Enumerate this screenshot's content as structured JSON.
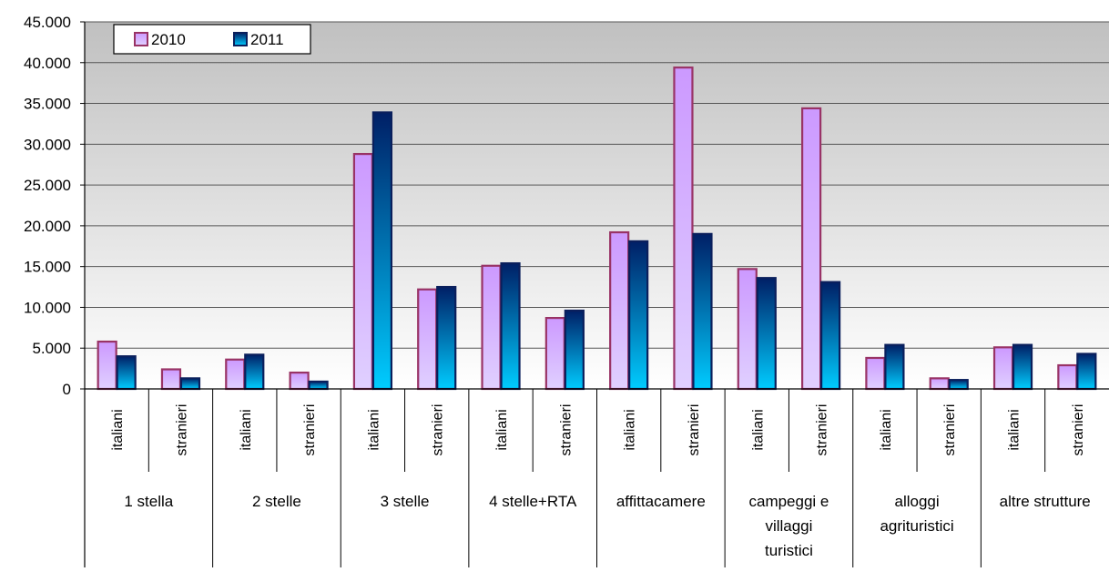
{
  "chart_data": {
    "type": "bar",
    "title": "",
    "xlabel": "",
    "ylabel": "",
    "ylim": [
      0,
      45000
    ],
    "yticks": [
      0,
      5000,
      10000,
      15000,
      20000,
      25000,
      30000,
      35000,
      40000,
      45000
    ],
    "ytick_labels": [
      "0",
      "5.000",
      "10.000",
      "15.000",
      "20.000",
      "25.000",
      "30.000",
      "35.000",
      "40.000",
      "45.000"
    ],
    "grid": true,
    "legend_position": "top-left",
    "groups": [
      {
        "label": "1 stella",
        "lines": [
          "1 stella"
        ]
      },
      {
        "label": "2 stelle",
        "lines": [
          "2 stelle"
        ]
      },
      {
        "label": "3 stelle",
        "lines": [
          "3 stelle"
        ]
      },
      {
        "label": "4 stelle+RTA",
        "lines": [
          "4 stelle+RTA"
        ]
      },
      {
        "label": "affittacamere",
        "lines": [
          "affittacamere"
        ]
      },
      {
        "label": "campeggi e villaggi turistici",
        "lines": [
          "campeggi e",
          "villaggi",
          "turistici"
        ]
      },
      {
        "label": "alloggi agrituristici",
        "lines": [
          "alloggi",
          "agrituristici"
        ]
      },
      {
        "label": "altre strutture",
        "lines": [
          "altre strutture"
        ]
      }
    ],
    "categories": [
      "italiani",
      "stranieri",
      "italiani",
      "stranieri",
      "italiani",
      "stranieri",
      "italiani",
      "stranieri",
      "italiani",
      "stranieri",
      "italiani",
      "stranieri",
      "italiani",
      "stranieri",
      "italiani",
      "stranieri"
    ],
    "series": [
      {
        "name": "2010",
        "values": [
          5800,
          2400,
          3600,
          2000,
          28800,
          12200,
          15100,
          8700,
          19200,
          39400,
          14700,
          34400,
          3800,
          1300,
          5100,
          2900
        ]
      },
      {
        "name": "2011",
        "values": [
          4000,
          1300,
          4200,
          900,
          33900,
          12500,
          15400,
          9600,
          18100,
          19000,
          13600,
          13100,
          5400,
          1100,
          5400,
          4300
        ]
      }
    ],
    "colors": {
      "s2010_fill_top": "#cc99ff",
      "s2010_fill_bottom": "#e0d0ff",
      "s2010_stroke": "#993366",
      "s2011_fill_top": "#001f66",
      "s2011_fill_bottom": "#00ccff",
      "s2011_stroke": "#0a1f5c",
      "plot_top": "#c0c0c0",
      "plot_bottom": "#ffffff"
    }
  }
}
